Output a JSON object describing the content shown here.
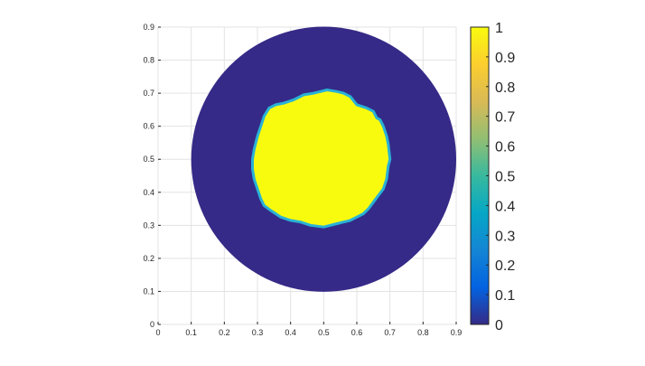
{
  "chart_data": {
    "type": "heatmap",
    "colormap": "parula",
    "xlim": [
      0,
      0.9
    ],
    "ylim": [
      0,
      0.9
    ],
    "grid": true,
    "x_ticks": [
      "0",
      "0.1",
      "0.2",
      "0.3",
      "0.4",
      "0.5",
      "0.6",
      "0.7",
      "0.8",
      "0.9"
    ],
    "y_ticks": [
      "0",
      "0.1",
      "0.2",
      "0.3",
      "0.4",
      "0.5",
      "0.6",
      "0.7",
      "0.8",
      "0.9"
    ],
    "colorbar": {
      "range": [
        0,
        1
      ],
      "ticks": [
        "0",
        "0.1",
        "0.2",
        "0.3",
        "0.4",
        "0.5",
        "0.6",
        "0.7",
        "0.8",
        "0.9",
        "1"
      ]
    },
    "domain": {
      "shape": "disk",
      "center": [
        0.5,
        0.5
      ],
      "radius": 0.4,
      "value": 0
    },
    "inclusion": {
      "value": 1,
      "boundary": [
        [
          0.51,
          0.71
        ],
        [
          0.54,
          0.705
        ],
        [
          0.56,
          0.7
        ],
        [
          0.58,
          0.69
        ],
        [
          0.6,
          0.665
        ],
        [
          0.63,
          0.655
        ],
        [
          0.65,
          0.645
        ],
        [
          0.66,
          0.625
        ],
        [
          0.67,
          0.62
        ],
        [
          0.68,
          0.6
        ],
        [
          0.69,
          0.57
        ],
        [
          0.695,
          0.545
        ],
        [
          0.7,
          0.5
        ],
        [
          0.695,
          0.48
        ],
        [
          0.69,
          0.44
        ],
        [
          0.68,
          0.41
        ],
        [
          0.665,
          0.39
        ],
        [
          0.65,
          0.37
        ],
        [
          0.635,
          0.35
        ],
        [
          0.62,
          0.335
        ],
        [
          0.6,
          0.325
        ],
        [
          0.58,
          0.315
        ],
        [
          0.56,
          0.31
        ],
        [
          0.54,
          0.305
        ],
        [
          0.5,
          0.295
        ],
        [
          0.46,
          0.3
        ],
        [
          0.43,
          0.31
        ],
        [
          0.4,
          0.315
        ],
        [
          0.37,
          0.325
        ],
        [
          0.34,
          0.345
        ],
        [
          0.32,
          0.36
        ],
        [
          0.31,
          0.38
        ],
        [
          0.3,
          0.41
        ],
        [
          0.29,
          0.44
        ],
        [
          0.285,
          0.47
        ],
        [
          0.285,
          0.5
        ],
        [
          0.29,
          0.53
        ],
        [
          0.3,
          0.57
        ],
        [
          0.31,
          0.6
        ],
        [
          0.32,
          0.63
        ],
        [
          0.335,
          0.655
        ],
        [
          0.355,
          0.665
        ],
        [
          0.38,
          0.67
        ],
        [
          0.41,
          0.68
        ],
        [
          0.44,
          0.695
        ],
        [
          0.47,
          0.7
        ],
        [
          0.49,
          0.705
        ]
      ]
    },
    "colors": {
      "low": "#352a87",
      "high": "#f9fb0e",
      "boundary": "#29b2d6",
      "grid": "#e3e3e3",
      "axis": "#262626"
    },
    "parula_stops": [
      "#352a87",
      "#0363e1",
      "#1485d4",
      "#06a7c6",
      "#38b99e",
      "#92bf73",
      "#d9ba56",
      "#fcce2e",
      "#f9fb0e"
    ]
  }
}
